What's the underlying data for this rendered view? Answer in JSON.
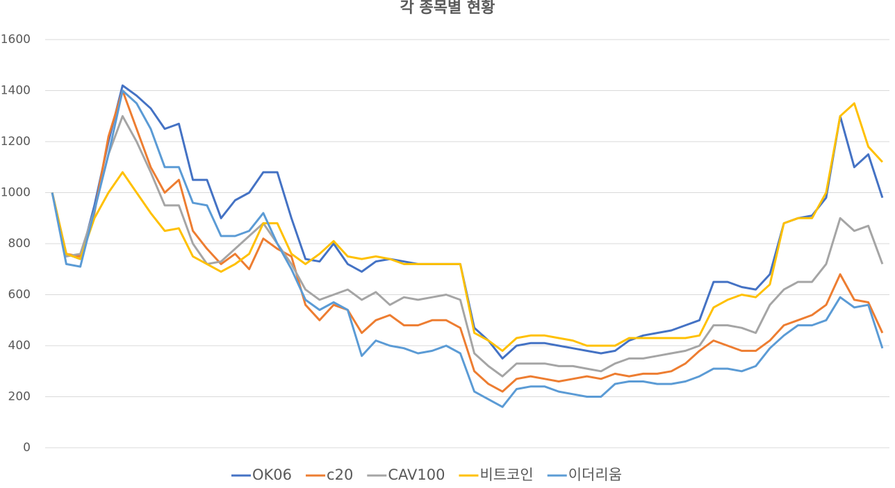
{
  "chart_data": {
    "type": "line",
    "title": "각 종목별 현황",
    "categories": [
      null,
      null,
      null,
      null,
      null,
      null,
      null,
      null,
      null,
      null,
      null,
      null,
      null,
      null,
      null,
      null,
      null,
      null,
      null,
      null,
      null,
      null,
      null,
      null,
      null,
      null,
      null,
      null,
      null,
      null,
      null,
      null,
      null,
      null,
      null,
      null,
      null,
      null,
      null,
      null,
      null,
      null,
      null,
      null,
      null,
      null,
      null,
      null,
      null,
      null,
      null,
      null,
      null,
      null,
      null,
      null,
      null,
      null,
      null,
      null
    ],
    "ylim": [
      0,
      1600
    ],
    "yticks": [
      0,
      200,
      400,
      600,
      800,
      1000,
      1200,
      1400,
      1600
    ],
    "grid": true,
    "legend": "bottom",
    "series": [
      {
        "name": "OK06",
        "color": "#4472c4",
        "values": [
          1000,
          760,
          740,
          950,
          1200,
          1420,
          1380,
          1330,
          1250,
          1270,
          1050,
          1050,
          900,
          970,
          1000,
          1080,
          1080,
          900,
          740,
          730,
          800,
          720,
          690,
          730,
          740,
          730,
          720,
          720,
          720,
          720,
          470,
          420,
          350,
          400,
          410,
          410,
          400,
          390,
          380,
          370,
          380,
          420,
          440,
          450,
          460,
          480,
          500,
          650,
          650,
          630,
          620,
          680,
          880,
          900,
          910,
          980,
          1300,
          1100,
          1150,
          980
        ]
      },
      {
        "name": "c20",
        "color": "#ed7d31",
        "values": [
          1000,
          760,
          750,
          920,
          1220,
          1400,
          1250,
          1100,
          1000,
          1050,
          850,
          780,
          720,
          760,
          700,
          820,
          780,
          750,
          560,
          500,
          560,
          540,
          450,
          500,
          520,
          480,
          480,
          500,
          500,
          470,
          300,
          250,
          220,
          270,
          280,
          270,
          260,
          270,
          280,
          270,
          290,
          280,
          290,
          290,
          300,
          330,
          380,
          420,
          400,
          380,
          380,
          420,
          480,
          500,
          520,
          560,
          680,
          580,
          570,
          450
        ]
      },
      {
        "name": "CAV100",
        "color": "#a5a5a5",
        "values": [
          1000,
          750,
          760,
          930,
          1150,
          1300,
          1200,
          1080,
          950,
          950,
          800,
          720,
          730,
          780,
          830,
          880,
          800,
          720,
          620,
          580,
          600,
          620,
          580,
          610,
          560,
          590,
          580,
          590,
          600,
          580,
          370,
          320,
          280,
          330,
          330,
          330,
          320,
          320,
          310,
          300,
          330,
          350,
          350,
          360,
          370,
          380,
          400,
          480,
          480,
          470,
          450,
          560,
          620,
          650,
          650,
          720,
          900,
          850,
          870,
          720
        ]
      },
      {
        "name": "비트코인",
        "color": "#ffc000",
        "values": [
          1000,
          760,
          740,
          900,
          1000,
          1080,
          1000,
          920,
          850,
          860,
          750,
          720,
          690,
          720,
          760,
          880,
          880,
          760,
          720,
          760,
          810,
          750,
          740,
          750,
          740,
          720,
          720,
          720,
          720,
          720,
          450,
          420,
          380,
          430,
          440,
          440,
          430,
          420,
          400,
          400,
          400,
          430,
          430,
          430,
          430,
          430,
          440,
          550,
          580,
          600,
          590,
          640,
          880,
          900,
          900,
          1000,
          1300,
          1350,
          1180,
          1120
        ]
      },
      {
        "name": "이더리움",
        "color": "#5b9bd5",
        "values": [
          1000,
          720,
          710,
          930,
          1150,
          1400,
          1350,
          1250,
          1100,
          1100,
          960,
          950,
          830,
          830,
          850,
          920,
          800,
          700,
          580,
          540,
          570,
          540,
          360,
          420,
          400,
          390,
          370,
          380,
          400,
          370,
          220,
          190,
          160,
          230,
          240,
          240,
          220,
          210,
          200,
          200,
          250,
          260,
          260,
          250,
          250,
          260,
          280,
          310,
          310,
          300,
          320,
          390,
          440,
          480,
          480,
          500,
          590,
          550,
          560,
          390
        ]
      }
    ]
  }
}
